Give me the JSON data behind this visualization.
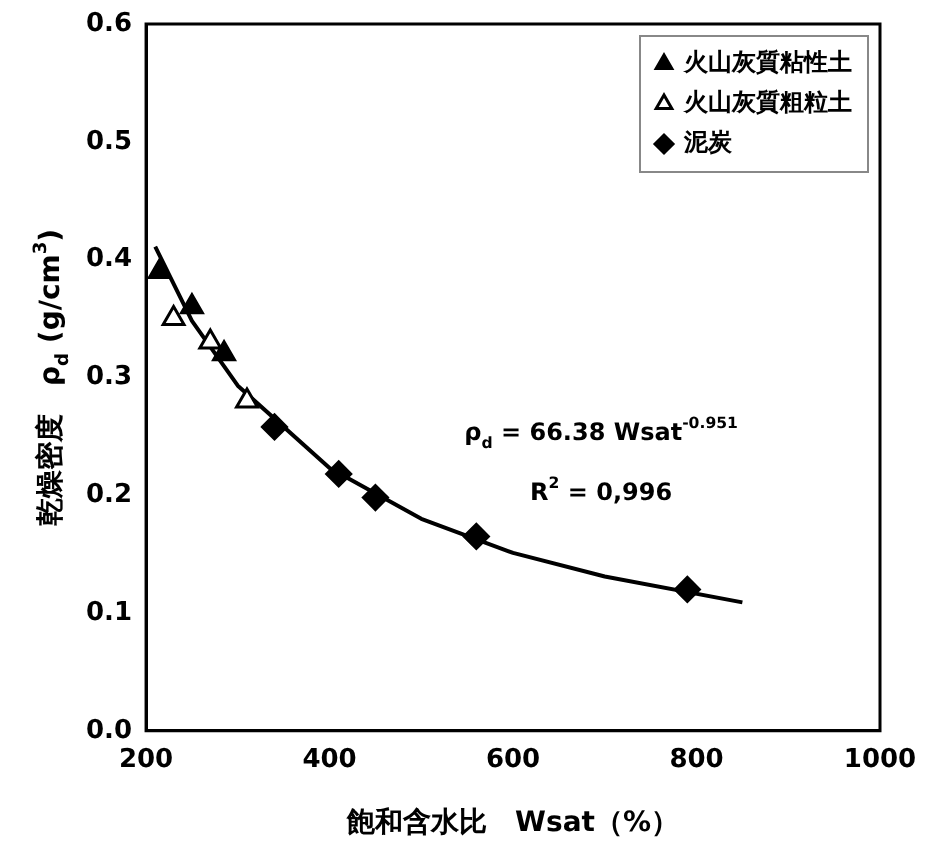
{
  "chart_data": {
    "type": "scatter",
    "xlabel": "飽和含水比　Wsat（%）",
    "ylabel": "乾燥密度　ρ$_{d}$ (g/cm$^{3}$)",
    "xlim": [
      200,
      1000
    ],
    "xticks": [
      200,
      400,
      600,
      800,
      1000
    ],
    "ylim": [
      0,
      0.6
    ],
    "yticks": [
      {
        "value": 0,
        "label": "0.0"
      },
      0.1,
      0.2,
      0.3,
      0.4,
      0.5,
      0.6
    ],
    "grid": false,
    "legend": "top right",
    "annotations": [
      "ρ$_{d}$ = 66.38 Wsat$^{-0.951}$",
      "R$^{2}$ = 0,996"
    ],
    "series": [
      {
        "name": "火山灰質粘性土",
        "color": "#000000",
        "marker": "triangle",
        "x": [
          215,
          250,
          285
        ],
        "values": [
          0.39,
          0.36,
          0.32
        ]
      },
      {
        "name": "火山灰質粗粒土",
        "color": "#000000",
        "marker": "triangle-open",
        "x": [
          230,
          270,
          310
        ],
        "values": [
          0.35,
          0.33,
          0.28
        ]
      },
      {
        "name": "泥炭",
        "color": "#000000",
        "marker": "diamond",
        "x": [
          340,
          410,
          450,
          560,
          790
        ],
        "values": [
          0.258,
          0.218,
          0.198,
          0.165,
          0.12
        ]
      },
      {
        "type": "line",
        "color": "#000000",
        "marker": "none",
        "x": [
          210,
          250,
          300,
          400,
          500,
          600,
          700,
          850
        ],
        "values": [
          0.411,
          0.348,
          0.293,
          0.223,
          0.18,
          0.151,
          0.131,
          0.109
        ]
      }
    ]
  }
}
